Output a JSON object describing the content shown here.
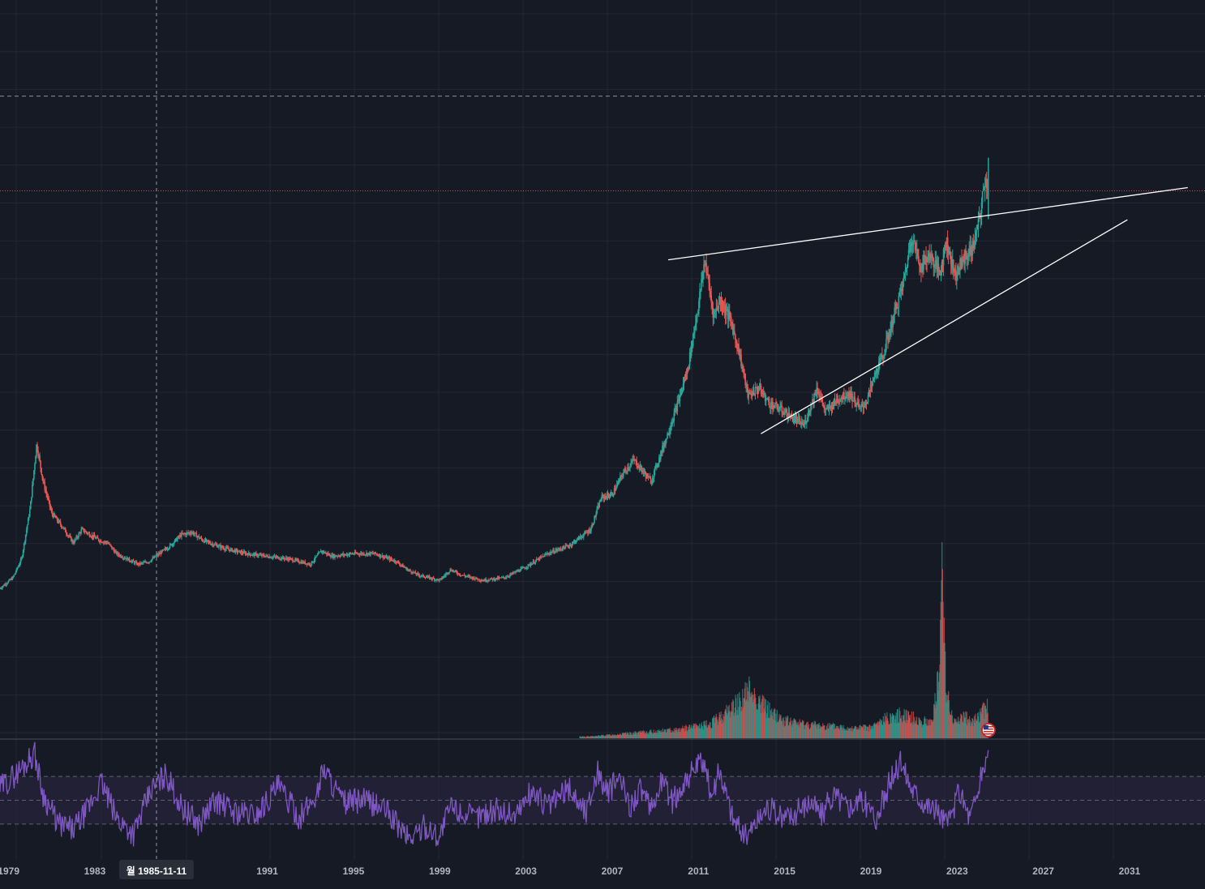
{
  "colors": {
    "background": "#161a25",
    "grid": "#232733",
    "candle_up": "#26a69a",
    "candle_down": "#ef5350",
    "trendline": "#ffffff",
    "price_line": "#ef5350",
    "rsi_line": "#7e57c2",
    "rsi_band": "#2a2540",
    "crosshair": "#9598a1",
    "axis_text": "#b2b5be",
    "badge_bg": "#2a2e39"
  },
  "crosshair": {
    "date_label": "월 1985-11-11",
    "flag_icon": "us-flag-icon"
  },
  "chart_data": [
    {
      "type": "line",
      "title": "",
      "x_unit": "year",
      "xlim": [
        1978.6,
        2034.5
      ],
      "ylim": [
        0,
        100
      ],
      "x_tick_labels": [
        "1979",
        "1983",
        "1991",
        "1995",
        "1999",
        "2003",
        "2007",
        "2011",
        "2015",
        "2019",
        "2023",
        "2027",
        "2031"
      ],
      "x_ticks": [
        1979,
        1983,
        1991,
        1995,
        1999,
        2003,
        2007,
        2011,
        2015,
        2019,
        2023,
        2027,
        2031
      ],
      "price_series": {
        "x": [
          1978.6,
          1979.2,
          1979.6,
          1980.0,
          1980.3,
          1980.6,
          1981.0,
          1981.5,
          1982.0,
          1982.4,
          1982.8,
          1983.2,
          1983.6,
          1984.0,
          1984.5,
          1985.0,
          1985.5,
          1986.0,
          1986.5,
          1987.0,
          1987.5,
          1988.0,
          1989.0,
          1990.0,
          1991.0,
          1992.0,
          1993.0,
          1993.5,
          1994.0,
          1995.0,
          1996.0,
          1997.0,
          1997.5,
          1998.0,
          1999.0,
          1999.5,
          2000.0,
          2001.0,
          2002.0,
          2003.0,
          2004.0,
          2005.0,
          2006.0,
          2006.5,
          2007.0,
          2007.5,
          2008.0,
          2008.2,
          2008.8,
          2009.5,
          2010.0,
          2010.5,
          2011.0,
          2011.3,
          2011.7,
          2012.0,
          2012.5,
          2012.9,
          2013.3,
          2013.8,
          2014.3,
          2014.8,
          2015.3,
          2015.9,
          2016.5,
          2016.9,
          2017.5,
          2018.0,
          2018.5,
          2018.8,
          2019.2,
          2019.6,
          2020.0,
          2020.5,
          2020.9,
          2021.3,
          2021.7,
          2022.2,
          2022.5,
          2022.9,
          2023.3,
          2023.7,
          2024.0,
          2024.3,
          2024.45
        ],
        "y": [
          11.0,
          13.0,
          16.5,
          26.0,
          38.0,
          31.0,
          25.0,
          22.5,
          19.5,
          22.0,
          21.0,
          20.0,
          19.5,
          17.5,
          16.5,
          15.5,
          16.0,
          17.5,
          19.0,
          21.0,
          21.5,
          20.0,
          18.5,
          17.5,
          17.0,
          16.5,
          15.5,
          18.0,
          17.0,
          17.5,
          17.5,
          16.0,
          14.5,
          13.5,
          12.5,
          14.5,
          13.5,
          12.5,
          13.0,
          15.0,
          17.5,
          19.0,
          22.0,
          28.0,
          28.5,
          32.5,
          35.0,
          34.0,
          31.0,
          39.0,
          45.0,
          52.0,
          64.0,
          72.5,
          62.0,
          65.0,
          61.0,
          55.0,
          47.0,
          48.5,
          45.5,
          44.5,
          43.0,
          41.5,
          48.5,
          44.0,
          46.5,
          47.5,
          44.5,
          46.0,
          51.0,
          55.0,
          61.0,
          68.0,
          77.0,
          71.0,
          73.5,
          70.0,
          76.0,
          69.5,
          72.5,
          74.5,
          79.0,
          87.5,
          86.0
        ]
      },
      "trendlines": [
        {
          "name": "upper",
          "from": [
            2009.6,
            72.4
          ],
          "to": [
            2033.7,
            85.9
          ]
        },
        {
          "name": "lower",
          "from": [
            2013.9,
            39.9
          ],
          "to": [
            2030.9,
            79.9
          ]
        }
      ],
      "price_line_level": 85.3,
      "dashed_level": 103.0,
      "crosshair_x": 1985.86
    },
    {
      "type": "bar",
      "title": "",
      "name": "volume",
      "ylim": [
        0,
        100
      ],
      "x": [
        2006.0,
        2008.0,
        2010.0,
        2011.5,
        2012.0,
        2012.8,
        2013.4,
        2013.9,
        2014.5,
        2015.0,
        2016.0,
        2017.0,
        2018.0,
        2019.0,
        2019.8,
        2020.6,
        2021.2,
        2021.8,
        2022.2,
        2022.3,
        2022.5,
        2022.8,
        2023.3,
        2023.8,
        2024.2,
        2024.45
      ],
      "values": [
        1,
        3,
        5,
        8,
        12,
        20,
        28,
        20,
        14,
        10,
        8,
        7,
        6,
        6,
        12,
        14,
        10,
        9,
        38,
        100,
        30,
        9,
        12,
        10,
        16,
        20
      ]
    },
    {
      "type": "line",
      "title": "",
      "name": "rsi",
      "ylim": [
        0,
        100
      ],
      "band": [
        30,
        70
      ],
      "mid": 50,
      "anchors_x": [
        1978.6,
        1979.5,
        1980.2,
        1980.6,
        1981.3,
        1982.0,
        1982.6,
        1983.3,
        1984.0,
        1984.8,
        1985.6,
        1986.3,
        1987.0,
        1987.8,
        1988.6,
        1989.5,
        1990.5,
        1991.5,
        1992.5,
        1993.3,
        1993.6,
        1994.5,
        1995.5,
        1996.5,
        1997.0,
        1997.6,
        1998.3,
        1999.0,
        1999.5,
        2000.5,
        2001.5,
        2002.5,
        2003.3,
        2004.0,
        2005.0,
        2005.8,
        2006.3,
        2006.8,
        2007.3,
        2007.8,
        2008.3,
        2008.8,
        2009.3,
        2009.8,
        2010.5,
        2011.2,
        2011.6,
        2012.0,
        2012.6,
        2013.2,
        2013.6,
        2014.2,
        2014.8,
        2015.4,
        2016.2,
        2016.7,
        2017.3,
        2017.9,
        2018.6,
        2019.3,
        2019.8,
        2020.4,
        2020.9,
        2021.5,
        2022.1,
        2022.6,
        2023.1,
        2023.6,
        2024.0,
        2024.45
      ],
      "anchors_y": [
        60,
        75,
        90,
        55,
        30,
        25,
        40,
        65,
        35,
        22,
        58,
        72,
        45,
        30,
        50,
        40,
        38,
        62,
        35,
        55,
        78,
        48,
        50,
        42,
        30,
        18,
        28,
        20,
        45,
        35,
        42,
        38,
        58,
        45,
        60,
        40,
        75,
        55,
        70,
        45,
        60,
        40,
        68,
        48,
        70,
        82,
        55,
        75,
        35,
        20,
        30,
        45,
        35,
        38,
        50,
        38,
        55,
        45,
        50,
        35,
        62,
        82,
        60,
        48,
        40,
        30,
        58,
        35,
        60,
        92
      ]
    }
  ]
}
